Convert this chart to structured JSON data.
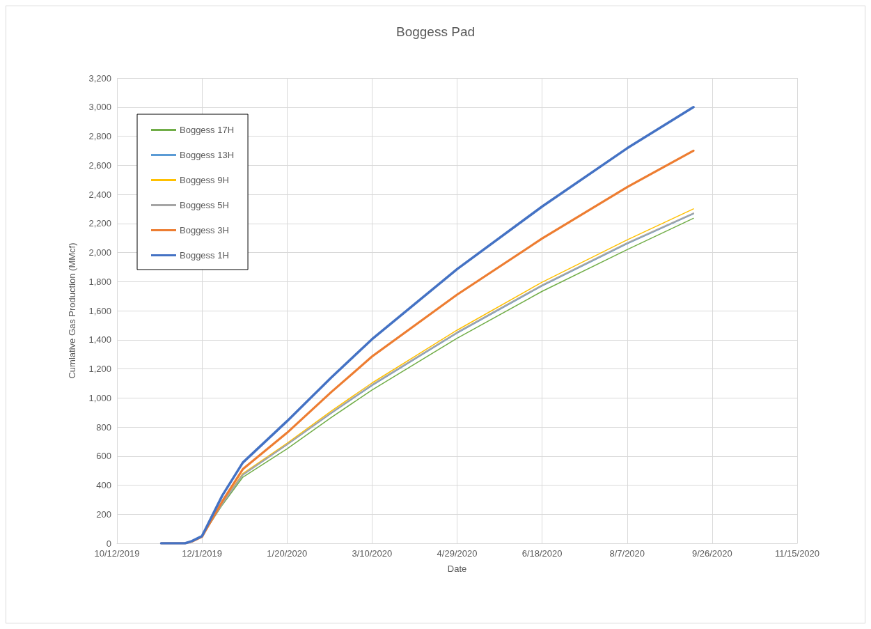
{
  "chart_data": {
    "type": "line",
    "title": "Boggess Pad",
    "xlabel": "Date",
    "ylabel": "Cumlative Gas Production (MMcf)",
    "x": [
      "2019-11-07",
      "2019-11-21",
      "2019-11-25",
      "2019-12-01",
      "2019-12-13",
      "2019-12-25",
      "2020-01-20",
      "2020-02-15",
      "2020-03-10",
      "2020-04-29",
      "2020-06-18",
      "2020-08-07",
      "2020-09-15"
    ],
    "series": [
      {
        "name": "Boggess 17H",
        "color": "#70ad47",
        "values": [
          null,
          null,
          15,
          50,
          265,
          455,
          650,
          865,
          1055,
          1410,
          1733,
          2020,
          2235
        ]
      },
      {
        "name": "Boggess 13H",
        "color": "#5b9bd5",
        "values": [
          0,
          0,
          15,
          50,
          272,
          470,
          678,
          894,
          1085,
          1445,
          1770,
          2060,
          2265
        ]
      },
      {
        "name": "Boggess 9H",
        "color": "#ffc000",
        "values": [
          null,
          null,
          null,
          null,
          280,
          480,
          688,
          910,
          1103,
          1466,
          1796,
          2087,
          2300
        ]
      },
      {
        "name": "Boggess 5H",
        "color": "#a5a5a5",
        "values": [
          0,
          0,
          15,
          50,
          275,
          472,
          680,
          898,
          1090,
          1450,
          1775,
          2065,
          2270
        ]
      },
      {
        "name": "Boggess 3H",
        "color": "#ed7d31",
        "values": [
          0,
          0,
          12,
          45,
          290,
          510,
          760,
          1040,
          1285,
          1710,
          2096,
          2450,
          2700
        ]
      },
      {
        "name": "Boggess 1H",
        "color": "#4472c4",
        "values": [
          0,
          0,
          15,
          50,
          330,
          555,
          840,
          1140,
          1404,
          1886,
          2316,
          2717,
          3000
        ]
      }
    ],
    "xlim": [
      "2019-10-12",
      "2020-11-15"
    ],
    "xticks": [
      {
        "value": "2019-10-12",
        "label": "10/12/2019"
      },
      {
        "value": "2019-12-01",
        "label": "12/1/2019"
      },
      {
        "value": "2020-01-20",
        "label": "1/20/2020"
      },
      {
        "value": "2020-03-10",
        "label": "3/10/2020"
      },
      {
        "value": "2020-04-29",
        "label": "4/29/2020"
      },
      {
        "value": "2020-06-18",
        "label": "6/18/2020"
      },
      {
        "value": "2020-08-07",
        "label": "8/7/2020"
      },
      {
        "value": "2020-09-26",
        "label": "9/26/2020"
      },
      {
        "value": "2020-11-15",
        "label": "11/15/2020"
      }
    ],
    "ylim": [
      0,
      3200
    ],
    "yticks": [
      {
        "value": 0,
        "label": "0"
      },
      {
        "value": 200,
        "label": "200"
      },
      {
        "value": 400,
        "label": "400"
      },
      {
        "value": 600,
        "label": "600"
      },
      {
        "value": 800,
        "label": "800"
      },
      {
        "value": 1000,
        "label": "1,000"
      },
      {
        "value": 1200,
        "label": "1,200"
      },
      {
        "value": 1400,
        "label": "1,400"
      },
      {
        "value": 1600,
        "label": "1,600"
      },
      {
        "value": 1800,
        "label": "1,800"
      },
      {
        "value": 2000,
        "label": "2,000"
      },
      {
        "value": 2200,
        "label": "2,200"
      },
      {
        "value": 2400,
        "label": "2,400"
      },
      {
        "value": 2600,
        "label": "2,600"
      },
      {
        "value": 2800,
        "label": "2,800"
      },
      {
        "value": 3000,
        "label": "3,000"
      },
      {
        "value": 3200,
        "label": "3,200"
      }
    ],
    "grid": true,
    "legend": "top left",
    "marker": "none",
    "line_style": "solid"
  }
}
